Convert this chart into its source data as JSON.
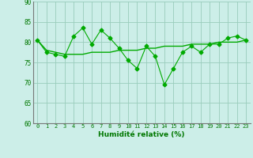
{
  "x": [
    0,
    1,
    2,
    3,
    4,
    5,
    6,
    7,
    8,
    9,
    10,
    11,
    12,
    13,
    14,
    15,
    16,
    17,
    18,
    19,
    20,
    21,
    22,
    23
  ],
  "y_main": [
    80.5,
    77.5,
    77.0,
    76.5,
    81.5,
    83.5,
    79.5,
    83.0,
    81.0,
    78.5,
    75.5,
    73.5,
    79.0,
    76.5,
    69.5,
    73.5,
    77.5,
    79.0,
    77.5,
    79.5,
    79.5,
    81.0,
    81.5,
    80.5
  ],
  "y_trend": [
    80.5,
    78.0,
    77.5,
    77.0,
    77.0,
    77.0,
    77.5,
    77.5,
    77.5,
    78.0,
    78.0,
    78.0,
    78.5,
    78.5,
    79.0,
    79.0,
    79.0,
    79.5,
    79.5,
    79.5,
    80.0,
    80.0,
    80.0,
    80.5
  ],
  "xlabel": "Humidité relative (%)",
  "ylim": [
    60,
    90
  ],
  "xlim": [
    -0.5,
    23.5
  ],
  "yticks": [
    60,
    65,
    70,
    75,
    80,
    85,
    90
  ],
  "xticks": [
    0,
    1,
    2,
    3,
    4,
    5,
    6,
    7,
    8,
    9,
    10,
    11,
    12,
    13,
    14,
    15,
    16,
    17,
    18,
    19,
    20,
    21,
    22,
    23
  ],
  "line_color": "#00aa00",
  "bg_color": "#cceee8",
  "grid_color": "#99ccbb",
  "tick_color": "#007700",
  "xlabel_color": "#007700"
}
